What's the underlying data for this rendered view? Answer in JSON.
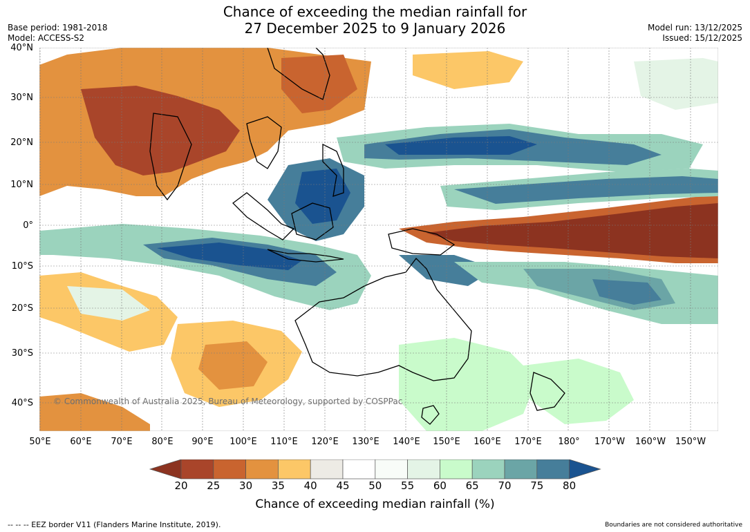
{
  "title_line1": "Chance of exceeding the median rainfall for",
  "title_line2": "27 December 2025 to 9 January 2026",
  "base_period": "Base period: 1981-2018",
  "model": "Model: ACCESS-S2",
  "model_run": "Model run: 13/12/2025",
  "issued": "Issued: 15/12/2025",
  "lat_labels": [
    "40°N",
    "30°N",
    "20°N",
    "10°N",
    "0°",
    "10°S",
    "20°S",
    "30°S",
    "40°S"
  ],
  "lon_labels": [
    "50°E",
    "60°E",
    "70°E",
    "80°E",
    "90°E",
    "100°E",
    "110°E",
    "120°E",
    "130°E",
    "140°E",
    "150°E",
    "160°E",
    "170°E",
    "180°",
    "170°W",
    "160°W",
    "150°W"
  ],
  "copyright": "© Commonwealth of Australia 2025, Bureau of Meteorology, supported by COSPPac",
  "colorbar": {
    "ticks": [
      "20",
      "25",
      "30",
      "35",
      "40",
      "45",
      "50",
      "55",
      "60",
      "65",
      "70",
      "75",
      "80"
    ],
    "colors": [
      "#8c3320",
      "#a9452a",
      "#c9642f",
      "#e3923f",
      "#fcc767",
      "#edebe5",
      "#ffffff",
      "#f8fcf8",
      "#e4f4e6",
      "#c9fbcb",
      "#9bd3bd",
      "#6ba5a6",
      "#467e9a",
      "#1a5390"
    ],
    "label": "Chance of exceeding median rainfall (%)"
  },
  "footer_left": "--  --  -- EEZ border V11 (Flanders Marine Institute, 2019).",
  "footer_right": "Boundaries are not considered authoritative"
}
